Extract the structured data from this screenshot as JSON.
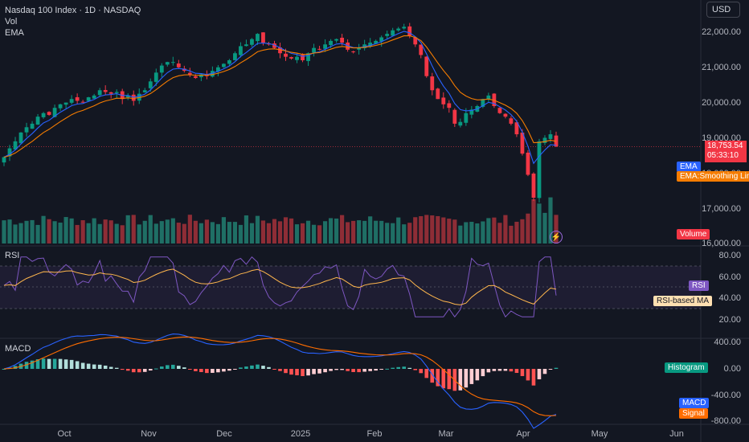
{
  "header": {
    "symbol_line": "Nasdaq 100 Index · 1D · NASDAQ",
    "vol_label": "Vol",
    "ema_label": "EMA",
    "currency_button": "USD"
  },
  "price_axis": {
    "labels": [
      "22,000.00",
      "21,000.00",
      "20,000.00",
      "19,000.00",
      "18,000.00",
      "17,000.00",
      "16,000.00"
    ],
    "current_price": "18,753.54",
    "countdown": "05:33:10"
  },
  "main_tags": {
    "ema": "EMA",
    "ema_smoothing": "EMA:Smoothing Line",
    "volume": "Volume"
  },
  "rsi_pane": {
    "title": "RSI",
    "axis": [
      "80.00",
      "60.00",
      "40.00",
      "20.00"
    ],
    "tags": {
      "rsi": "RSI",
      "rsi_ma": "RSI-based MA"
    }
  },
  "macd_pane": {
    "title": "MACD",
    "axis": [
      "400.00",
      "0.00",
      "-400.00",
      "-800.00"
    ],
    "tags": {
      "histogram": "Histogram",
      "macd": "MACD",
      "signal": "Signal"
    }
  },
  "time_axis": [
    "Oct",
    "Nov",
    "Dec",
    "2025",
    "Feb",
    "Mar",
    "Apr",
    "May",
    "Jun"
  ],
  "colors": {
    "background": "#131722",
    "up": "#089981",
    "down": "#f23645",
    "ema": "#2962ff",
    "ema_smooth": "#f57c00",
    "rsi": "#7e57c2",
    "rsi_ma": "#ffb74d",
    "macd": "#2962ff",
    "signal": "#ff6d00"
  },
  "chart_data": {
    "type": "candlestick",
    "title": "Nasdaq 100 Index · 1D · NASDAQ",
    "close_series": [
      18450,
      18700,
      18900,
      19150,
      19300,
      19400,
      19600,
      19700,
      19650,
      19850,
      19950,
      20000,
      20100,
      20050,
      20000,
      20150,
      20200,
      20350,
      20300,
      20250,
      20300,
      20100,
      20200,
      20050,
      20250,
      20350,
      20600,
      20850,
      21050,
      21150,
      21150,
      21000,
      20900,
      20800,
      20700,
      20800,
      20750,
      20900,
      21000,
      21100,
      21200,
      21400,
      21600,
      21650,
      21800,
      21950,
      21700,
      21650,
      21550,
      21400,
      21300,
      21250,
      21300,
      21200,
      21400,
      21550,
      21500,
      21650,
      21750,
      21800,
      21700,
      21500,
      21450,
      21550,
      21650,
      21700,
      21750,
      21850,
      21950,
      22050,
      22100,
      22150,
      21900,
      21650,
      21350,
      20750,
      20350,
      20100,
      19950,
      19850,
      19400,
      19450,
      19700,
      19800,
      19900,
      20100,
      20200,
      19900,
      19700,
      19600,
      19400,
      19100,
      18550,
      17950,
      17300,
      18900,
      19000,
      19100,
      18753.54
    ],
    "ylim": [
      16000,
      22500
    ],
    "x_ticks": [
      "Oct",
      "Nov",
      "Dec",
      "2025",
      "Feb",
      "Mar",
      "Apr",
      "May",
      "Jun"
    ]
  }
}
